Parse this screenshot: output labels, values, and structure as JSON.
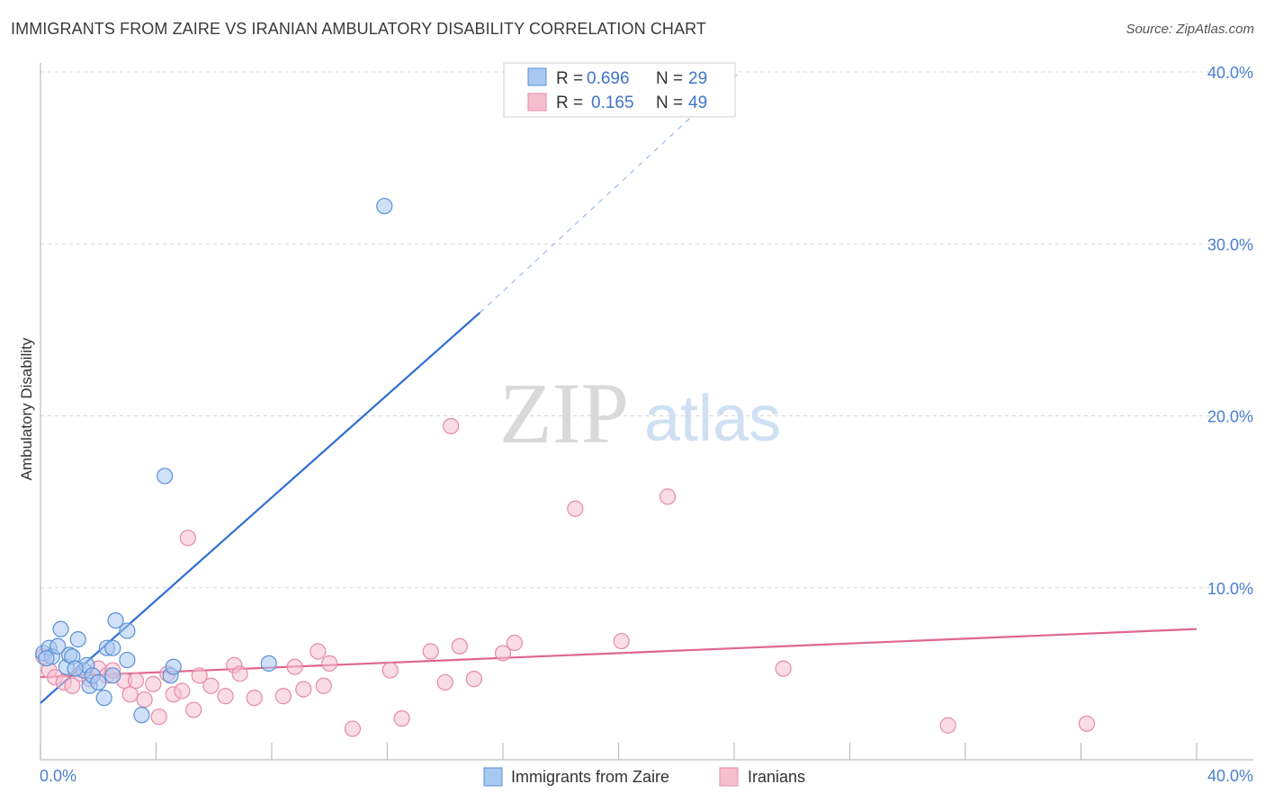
{
  "header": {
    "title": "IMMIGRANTS FROM ZAIRE VS IRANIAN AMBULATORY DISABILITY CORRELATION CHART",
    "source": "Source: ZipAtlas.com"
  },
  "watermark": {
    "zip": "ZIP",
    "atlas": "atlas"
  },
  "colors": {
    "blue_fill": "#a9c8f0",
    "blue_stroke": "#5b8fd6",
    "blue_line": "#2f6fd4",
    "pink_fill": "#f6bfd0",
    "pink_stroke": "#e58aa8",
    "pink_line": "#e0668f",
    "grid": "#d8d8d8",
    "tick_text": "#4a7fd0"
  },
  "legend_top": {
    "rows": [
      {
        "r_label": "R =",
        "r_value": "0.696",
        "n_label": "N =",
        "n_value": "29"
      },
      {
        "r_label": "R =",
        "r_value": "0.165",
        "n_label": "N =",
        "n_value": "49"
      }
    ]
  },
  "legend_bottom": {
    "items": [
      {
        "label": "Immigrants from Zaire"
      },
      {
        "label": "Iranians"
      }
    ]
  },
  "chart_data": {
    "type": "scatter",
    "title": "IMMIGRANTS FROM ZAIRE VS IRANIAN AMBULATORY DISABILITY CORRELATION CHART",
    "xlabel": "",
    "ylabel": "Ambulatory Disability",
    "xlim": [
      0,
      40
    ],
    "ylim": [
      0,
      40
    ],
    "x_tick_labels": [
      "0.0%",
      "40.0%"
    ],
    "y_ticks": [
      10,
      20,
      30,
      40
    ],
    "y_tick_labels": [
      "10.0%",
      "20.0%",
      "30.0%",
      "40.0%"
    ],
    "grid": true,
    "legend": "top-center",
    "series": [
      {
        "name": "Immigrants from Zaire",
        "R": 0.696,
        "N": 29,
        "trend": {
          "x0": 0,
          "y0": 3.3,
          "x1": 15.2,
          "y1": 26.0,
          "dash_to_x": 24.2,
          "dash_to_y": 40.0
        },
        "points": [
          [
            0.1,
            6.2
          ],
          [
            0.3,
            6.5
          ],
          [
            0.4,
            6.0
          ],
          [
            0.6,
            6.6
          ],
          [
            0.7,
            7.6
          ],
          [
            0.9,
            5.4
          ],
          [
            1.0,
            6.1
          ],
          [
            1.1,
            6.0
          ],
          [
            1.3,
            7.0
          ],
          [
            1.5,
            5.2
          ],
          [
            1.6,
            5.5
          ],
          [
            1.7,
            4.3
          ],
          [
            1.8,
            4.9
          ],
          [
            2.0,
            4.5
          ],
          [
            2.2,
            3.6
          ],
          [
            2.3,
            6.5
          ],
          [
            2.5,
            6.5
          ],
          [
            2.5,
            4.9
          ],
          [
            2.6,
            8.1
          ],
          [
            3.0,
            5.8
          ],
          [
            3.0,
            7.5
          ],
          [
            3.5,
            2.6
          ],
          [
            4.3,
            16.5
          ],
          [
            4.5,
            4.9
          ],
          [
            4.6,
            5.4
          ],
          [
            7.9,
            5.6
          ],
          [
            11.9,
            32.2
          ],
          [
            0.2,
            5.9
          ],
          [
            1.2,
            5.3
          ]
        ]
      },
      {
        "name": "Iranians",
        "R": 0.165,
        "N": 49,
        "trend": {
          "x0": 0,
          "y0": 4.8,
          "x1": 40,
          "y1": 7.6
        },
        "points": [
          [
            0.1,
            6.0
          ],
          [
            0.3,
            5.2
          ],
          [
            0.5,
            4.8
          ],
          [
            0.8,
            4.5
          ],
          [
            1.1,
            4.3
          ],
          [
            1.4,
            5.0
          ],
          [
            1.7,
            4.7
          ],
          [
            2.0,
            5.3
          ],
          [
            2.3,
            4.9
          ],
          [
            2.5,
            5.2
          ],
          [
            2.9,
            4.6
          ],
          [
            3.1,
            3.8
          ],
          [
            3.3,
            4.6
          ],
          [
            3.6,
            3.5
          ],
          [
            3.9,
            4.4
          ],
          [
            4.1,
            2.5
          ],
          [
            4.4,
            5.0
          ],
          [
            4.6,
            3.8
          ],
          [
            4.9,
            4.0
          ],
          [
            5.1,
            12.9
          ],
          [
            5.3,
            2.9
          ],
          [
            5.5,
            4.9
          ],
          [
            5.9,
            4.3
          ],
          [
            6.4,
            3.7
          ],
          [
            6.7,
            5.5
          ],
          [
            6.9,
            5.0
          ],
          [
            7.4,
            3.6
          ],
          [
            8.4,
            3.7
          ],
          [
            8.8,
            5.4
          ],
          [
            9.1,
            4.1
          ],
          [
            9.6,
            6.3
          ],
          [
            9.8,
            4.3
          ],
          [
            10.0,
            5.6
          ],
          [
            10.8,
            1.8
          ],
          [
            12.1,
            5.2
          ],
          [
            12.5,
            2.4
          ],
          [
            13.5,
            6.3
          ],
          [
            14.0,
            4.5
          ],
          [
            14.5,
            6.6
          ],
          [
            15.0,
            4.7
          ],
          [
            14.2,
            19.4
          ],
          [
            16.0,
            6.2
          ],
          [
            16.4,
            6.8
          ],
          [
            18.5,
            14.6
          ],
          [
            20.1,
            6.9
          ],
          [
            21.7,
            15.3
          ],
          [
            25.7,
            5.3
          ],
          [
            31.4,
            2.0
          ],
          [
            36.2,
            2.1
          ]
        ]
      }
    ]
  }
}
